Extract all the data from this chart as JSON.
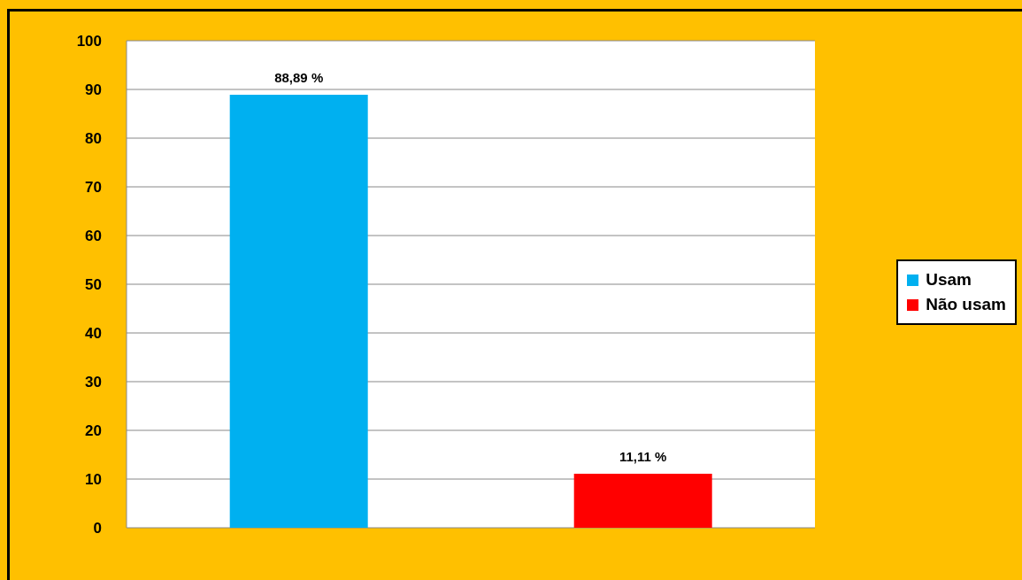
{
  "chart_data": {
    "type": "bar",
    "categories": [
      null,
      null
    ],
    "series": [
      {
        "name": "Usam",
        "color": "#00b0f0",
        "values": [
          88.89,
          null
        ],
        "value_labels": [
          "88,89 %",
          null
        ]
      },
      {
        "name": "Não usam",
        "color": "#ff0000",
        "values": [
          null,
          11.11
        ],
        "value_labels": [
          null,
          "11,11 %"
        ]
      }
    ],
    "ylim": [
      0,
      100
    ],
    "yticks": [
      0,
      10,
      20,
      30,
      40,
      50,
      60,
      70,
      80,
      90,
      100
    ],
    "grid": "y",
    "legend": "right"
  }
}
